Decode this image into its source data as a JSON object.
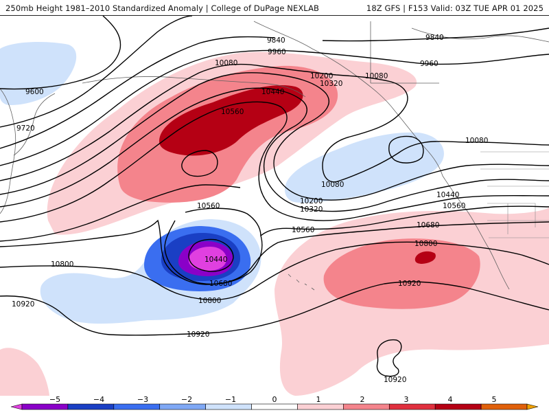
{
  "header": {
    "title_left": "250mb Height 1981–2010 Standardized Anomaly | College of DuPage NEXLAB",
    "title_right": "18Z GFS | F153 Valid: 03Z TUE APR 01 2025"
  },
  "map": {
    "contour_labels": [
      "9600",
      "9720",
      "9840",
      "9840",
      "9960",
      "9960",
      "10080",
      "10080",
      "10080",
      "10080",
      "10200",
      "10200",
      "10320",
      "10320",
      "10440",
      "10440",
      "10440",
      "10560",
      "10560",
      "10560",
      "10560",
      "10680",
      "10680",
      "10800",
      "10800",
      "10800",
      "10920",
      "10920",
      "10920",
      "10920"
    ]
  },
  "colorbar": {
    "ticks": [
      "−5",
      "−4",
      "−3",
      "−2",
      "−1",
      "0",
      "1",
      "2",
      "3",
      "4",
      "5"
    ],
    "colors": [
      "#e040e0",
      "#8a00c8",
      "#1a3fc4",
      "#3a6ef0",
      "#7fa8f5",
      "#cfe2fb",
      "#ffffff",
      "#fbd0d4",
      "#f4848c",
      "#e0303e",
      "#b50014",
      "#e0600a",
      "#f0a000"
    ]
  }
}
